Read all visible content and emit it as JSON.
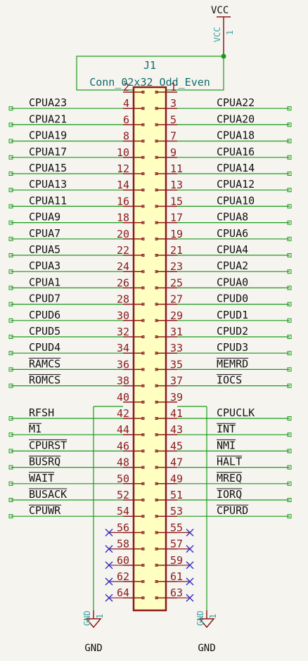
{
  "component": {
    "ref": "J1",
    "value": "Conn_02x32_Odd_Even"
  },
  "power": {
    "vcc_label": "VCC",
    "vcc_pin_name": "VCC",
    "vcc_pin_num": "1",
    "gnd_label": "GND",
    "gnd_pin_name": "GND",
    "gnd_pin_num": "1"
  },
  "colors": {
    "background": "#f5f4ef",
    "wire": "#1a9a1a",
    "body_fill": "#ffffc2",
    "body_stroke": "#8b1a1a",
    "pin_number": "#8b1a1a",
    "no_connect": "#2f2fd0"
  },
  "rows": [
    {
      "even": "2",
      "odd": "1",
      "left": "",
      "right": "",
      "left_wire": false,
      "right_wire": false
    },
    {
      "even": "4",
      "odd": "3",
      "left": "CPUA23",
      "right": "CPUA22",
      "left_wire": true,
      "right_wire": true
    },
    {
      "even": "6",
      "odd": "5",
      "left": "CPUA21",
      "right": "CPUA20",
      "left_wire": true,
      "right_wire": true
    },
    {
      "even": "8",
      "odd": "7",
      "left": "CPUA19",
      "right": "CPUA18",
      "left_wire": true,
      "right_wire": true
    },
    {
      "even": "10",
      "odd": "9",
      "left": "CPUA17",
      "right": "CPUA16",
      "left_wire": true,
      "right_wire": true
    },
    {
      "even": "12",
      "odd": "11",
      "left": "CPUA15",
      "right": "CPUA14",
      "left_wire": true,
      "right_wire": true
    },
    {
      "even": "14",
      "odd": "13",
      "left": "CPUA13",
      "right": "CPUA12",
      "left_wire": true,
      "right_wire": true
    },
    {
      "even": "16",
      "odd": "15",
      "left": "CPUA11",
      "right": "CPUA10",
      "left_wire": true,
      "right_wire": true
    },
    {
      "even": "18",
      "odd": "17",
      "left": "CPUA9",
      "right": "CPUA8",
      "left_wire": true,
      "right_wire": true
    },
    {
      "even": "20",
      "odd": "19",
      "left": "CPUA7",
      "right": "CPUA6",
      "left_wire": true,
      "right_wire": true
    },
    {
      "even": "22",
      "odd": "21",
      "left": "CPUA5",
      "right": "CPUA4",
      "left_wire": true,
      "right_wire": true
    },
    {
      "even": "24",
      "odd": "23",
      "left": "CPUA3",
      "right": "CPUA2",
      "left_wire": true,
      "right_wire": true
    },
    {
      "even": "26",
      "odd": "25",
      "left": "CPUA1",
      "right": "CPUA0",
      "left_wire": true,
      "right_wire": true
    },
    {
      "even": "28",
      "odd": "27",
      "left": "CPUD7",
      "right": "CPUD0",
      "left_wire": true,
      "right_wire": true
    },
    {
      "even": "30",
      "odd": "29",
      "left": "CPUD6",
      "right": "CPUD1",
      "left_wire": true,
      "right_wire": true
    },
    {
      "even": "32",
      "odd": "31",
      "left": "CPUD5",
      "right": "CPUD2",
      "left_wire": true,
      "right_wire": true
    },
    {
      "even": "34",
      "odd": "33",
      "left": "CPUD4",
      "right": "CPUD3",
      "left_wire": true,
      "right_wire": true
    },
    {
      "even": "36",
      "odd": "35",
      "left": "RAMCS",
      "right": "MEMRD",
      "left_wire": true,
      "right_wire": true,
      "left_overbar": true,
      "right_overbar": true
    },
    {
      "even": "38",
      "odd": "37",
      "left": "ROMCS",
      "right": "IOCS",
      "left_wire": true,
      "right_wire": true,
      "left_overbar": true,
      "right_overbar": true
    },
    {
      "even": "40",
      "odd": "39",
      "left": "",
      "right": "",
      "left_wire": false,
      "right_wire": false
    },
    {
      "even": "42",
      "odd": "41",
      "left": "RFSH",
      "right": "CPUCLK",
      "left_wire": true,
      "right_wire": true
    },
    {
      "even": "44",
      "odd": "43",
      "left": "M1",
      "right": "INT",
      "left_wire": true,
      "right_wire": true,
      "left_overbar": true,
      "right_overbar": true
    },
    {
      "even": "46",
      "odd": "45",
      "left": "CPURST",
      "right": "NMI",
      "left_wire": true,
      "right_wire": true,
      "left_overbar": true,
      "right_overbar": true
    },
    {
      "even": "48",
      "odd": "47",
      "left": "BUSRQ",
      "right": "HALT",
      "left_wire": true,
      "right_wire": true,
      "left_overbar": true,
      "right_overbar": true
    },
    {
      "even": "50",
      "odd": "49",
      "left": "WAIT",
      "right": "MREQ",
      "left_wire": true,
      "right_wire": true,
      "left_overbar": true,
      "right_overbar": true
    },
    {
      "even": "52",
      "odd": "51",
      "left": "BUSACK",
      "right": "IORQ",
      "left_wire": true,
      "right_wire": true,
      "left_overbar": true,
      "right_overbar": true
    },
    {
      "even": "54",
      "odd": "53",
      "left": "CPUWR",
      "right": "CPURD",
      "left_wire": true,
      "right_wire": true,
      "left_overbar": true,
      "right_overbar": true
    },
    {
      "even": "56",
      "odd": "55",
      "left": "",
      "right": "",
      "nc": true
    },
    {
      "even": "58",
      "odd": "57",
      "left": "",
      "right": "",
      "nc": true
    },
    {
      "even": "60",
      "odd": "59",
      "left": "",
      "right": "",
      "nc": true
    },
    {
      "even": "62",
      "odd": "61",
      "left": "",
      "right": "",
      "nc": true
    },
    {
      "even": "64",
      "odd": "63",
      "left": "",
      "right": "",
      "nc": true
    }
  ]
}
